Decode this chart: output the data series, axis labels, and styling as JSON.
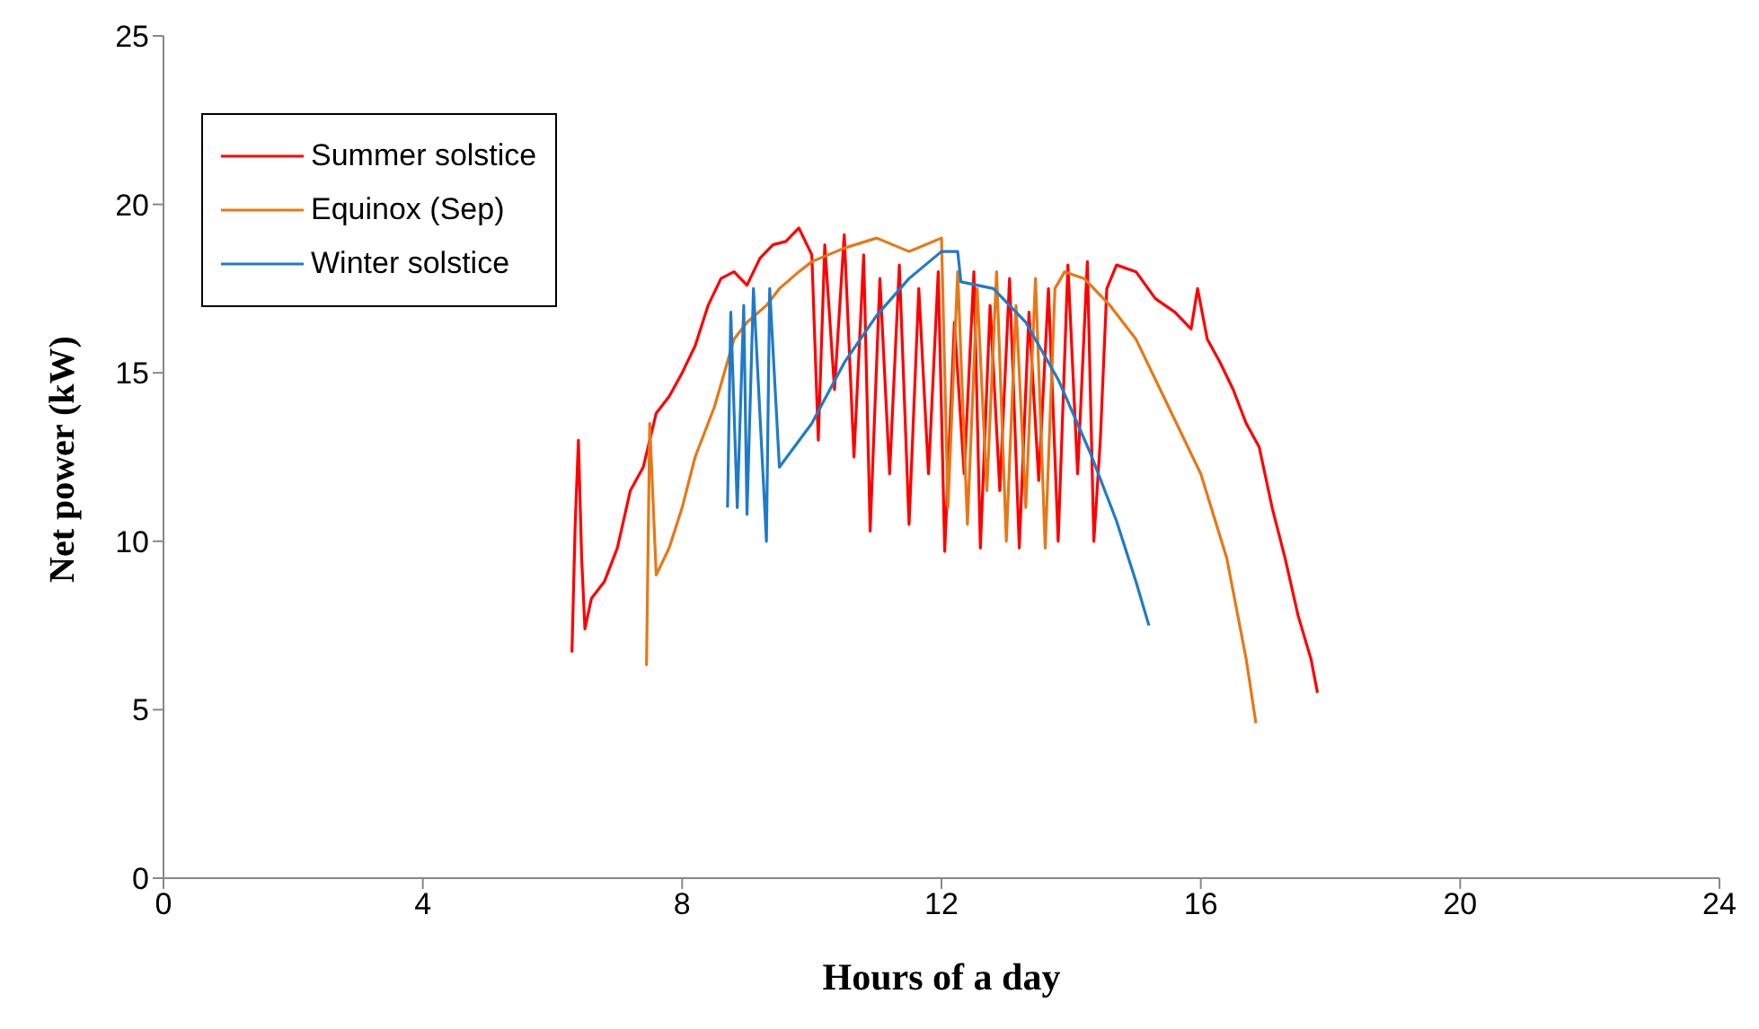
{
  "chart_data": {
    "type": "line",
    "xlabel": "Hours of a day",
    "ylabel": "Net power (kW)",
    "xlim": [
      0,
      24
    ],
    "xticks": [
      0,
      4,
      8,
      12,
      16,
      20,
      24
    ],
    "ylim": [
      0,
      25
    ],
    "yticks": [
      0,
      5,
      10,
      15,
      20,
      25
    ],
    "grid": false,
    "legend": "top left",
    "marker": "none",
    "line_style": "solid",
    "series": [
      {
        "name": "Summer solstice",
        "color": "#ff0000",
        "x": [
          6.3,
          6.35,
          6.4,
          6.45,
          6.5,
          6.6,
          6.8,
          7.0,
          7.2,
          7.4,
          7.6,
          7.8,
          8.0,
          8.2,
          8.4,
          8.6,
          8.8,
          9.0,
          9.2,
          9.4,
          9.6,
          9.8,
          10.0,
          10.1,
          10.2,
          10.35,
          10.5,
          10.65,
          10.8,
          10.9,
          11.05,
          11.2,
          11.35,
          11.5,
          11.65,
          11.8,
          11.95,
          12.05,
          12.2,
          12.35,
          12.5,
          12.6,
          12.75,
          12.9,
          13.05,
          13.2,
          13.35,
          13.5,
          13.65,
          13.8,
          13.95,
          14.1,
          14.25,
          14.35,
          14.45,
          14.55,
          14.7,
          15.0,
          15.3,
          15.6,
          15.85,
          15.95,
          16.1,
          16.3,
          16.5,
          16.7,
          16.9,
          17.1,
          17.3,
          17.5,
          17.7,
          17.8
        ],
        "values": [
          6.7,
          10.5,
          13.0,
          9.5,
          7.4,
          8.3,
          8.8,
          9.8,
          11.5,
          12.2,
          13.8,
          14.3,
          15.0,
          15.8,
          17.0,
          17.8,
          18.0,
          17.6,
          18.4,
          18.8,
          18.9,
          19.3,
          18.5,
          13.0,
          18.8,
          14.5,
          19.1,
          12.5,
          18.5,
          10.3,
          17.8,
          12.0,
          18.2,
          10.5,
          17.5,
          12.0,
          18.0,
          9.7,
          16.5,
          12.0,
          18.0,
          9.8,
          17.0,
          11.5,
          17.8,
          9.8,
          16.8,
          11.8,
          17.5,
          10.0,
          18.2,
          12.0,
          18.3,
          10.0,
          13.0,
          17.5,
          18.2,
          18.0,
          17.2,
          16.8,
          16.3,
          17.5,
          16.0,
          15.3,
          14.5,
          13.5,
          12.8,
          11.0,
          9.5,
          7.8,
          6.5,
          5.5
        ]
      },
      {
        "name": "Equinox (Sep)",
        "color": "#e67817",
        "x": [
          7.45,
          7.5,
          7.6,
          7.8,
          8.0,
          8.2,
          8.5,
          8.8,
          9.0,
          9.3,
          9.5,
          9.8,
          10.0,
          10.5,
          11.0,
          11.5,
          12.0,
          12.1,
          12.25,
          12.4,
          12.55,
          12.7,
          12.85,
          13.0,
          13.15,
          13.3,
          13.45,
          13.6,
          13.75,
          13.9,
          14.2,
          14.6,
          15.0,
          15.5,
          16.0,
          16.4,
          16.7,
          16.85
        ],
        "values": [
          6.3,
          13.5,
          9.0,
          9.8,
          11.0,
          12.5,
          14.0,
          16.0,
          16.5,
          17.0,
          17.5,
          18.0,
          18.3,
          18.7,
          19.0,
          18.6,
          19.0,
          11.0,
          18.0,
          10.5,
          17.5,
          11.5,
          18.0,
          10.0,
          17.0,
          11.0,
          17.8,
          9.8,
          17.5,
          18.0,
          17.8,
          17.0,
          16.0,
          14.0,
          12.0,
          9.5,
          6.5,
          4.6
        ]
      },
      {
        "name": "Winter solstice",
        "color": "#1f7bc8",
        "x": [
          8.7,
          8.75,
          8.85,
          8.95,
          9.0,
          9.1,
          9.3,
          9.35,
          9.5,
          10.0,
          10.5,
          11.0,
          11.5,
          12.0,
          12.25,
          12.3,
          12.8,
          13.3,
          13.8,
          14.3,
          14.7,
          15.0,
          15.2
        ],
        "values": [
          11.0,
          16.8,
          11.0,
          17.0,
          10.8,
          17.5,
          10.0,
          17.5,
          12.2,
          13.5,
          15.3,
          16.7,
          17.8,
          18.6,
          18.6,
          17.7,
          17.5,
          16.5,
          14.8,
          12.6,
          10.6,
          8.8,
          7.5
        ]
      }
    ]
  }
}
